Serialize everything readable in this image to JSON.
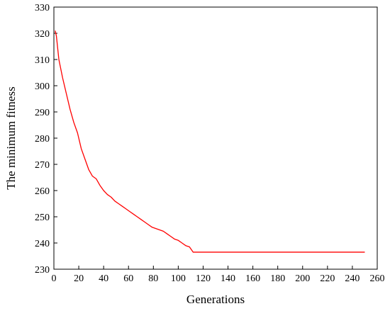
{
  "chart_data": {
    "type": "line",
    "title": "",
    "xlabel": "Generations",
    "ylabel": "The minimum fitness",
    "xlim": [
      0,
      260
    ],
    "ylim": [
      230,
      330
    ],
    "xticks": [
      0,
      20,
      40,
      60,
      80,
      100,
      120,
      140,
      160,
      180,
      200,
      220,
      240,
      260
    ],
    "yticks": [
      230,
      240,
      250,
      260,
      270,
      280,
      290,
      300,
      310,
      320,
      330
    ],
    "grid": false,
    "legend": "none",
    "series": [
      {
        "color": "#ff0000",
        "x": [
          1,
          2,
          4,
          7,
          10,
          13,
          16,
          19,
          22,
          25,
          28,
          31,
          34,
          37,
          40,
          43,
          46,
          49,
          52,
          55,
          58,
          61,
          64,
          67,
          70,
          73,
          76,
          79,
          82,
          85,
          88,
          91,
          94,
          97,
          100,
          103,
          106,
          109,
          112,
          115,
          118,
          250
        ],
        "y": [
          321,
          319,
          310,
          303,
          297,
          291,
          286,
          282,
          276,
          272,
          268,
          265.5,
          264.5,
          262,
          260,
          258.5,
          257.5,
          256,
          255,
          254,
          253,
          252,
          251,
          250,
          249,
          248,
          247,
          246,
          245.5,
          245,
          244.5,
          243.5,
          242.5,
          241.5,
          241,
          240,
          239,
          238.5,
          236.5,
          236.5,
          236.5,
          236.5
        ]
      }
    ]
  }
}
